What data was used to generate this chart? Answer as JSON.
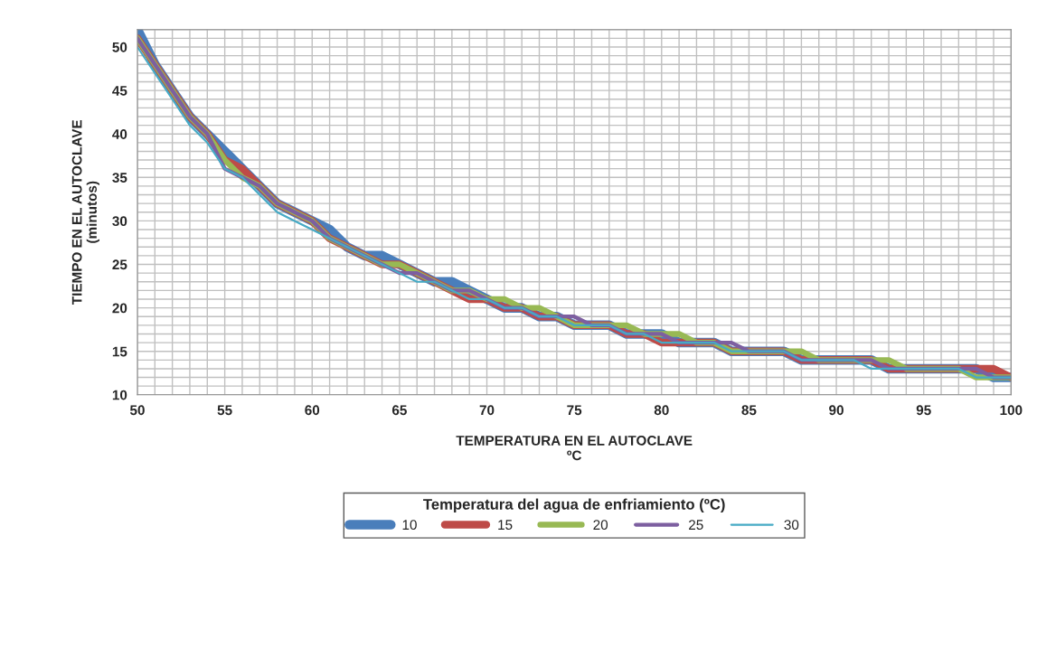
{
  "chart_data": {
    "type": "line",
    "xlabel": "TEMPERATURA EN EL AUTOCLAVE\nºC",
    "ylabel": "TIEMPO EN EL AUTOCLAVE\n(minutos)",
    "legend_title": "Temperatura del agua de enfriamiento (ºC)",
    "legend": "bottom",
    "grid": true,
    "marker": "none",
    "line_style": "solid",
    "x": [
      50,
      51,
      52,
      53,
      54,
      55,
      56,
      57,
      58,
      59,
      60,
      61,
      62,
      63,
      64,
      65,
      66,
      67,
      68,
      69,
      70,
      71,
      72,
      73,
      74,
      75,
      76,
      77,
      78,
      79,
      80,
      81,
      82,
      83,
      84,
      85,
      86,
      87,
      88,
      89,
      90,
      91,
      92,
      93,
      94,
      95,
      96,
      97,
      98,
      99,
      100
    ],
    "series": [
      {
        "name": "10",
        "color": "#4a7ebb",
        "values": [
          52,
          48,
          45,
          42,
          40,
          38,
          36,
          34,
          32,
          31,
          30,
          29,
          27,
          26,
          26,
          25,
          24,
          23,
          23,
          22,
          21,
          20,
          20,
          19,
          19,
          18,
          18,
          18,
          17,
          17,
          17,
          16,
          16,
          16,
          15,
          15,
          15,
          15,
          14,
          14,
          14,
          14,
          14,
          13,
          13,
          13,
          13,
          13,
          13,
          12,
          12
        ]
      },
      {
        "name": "15",
        "color": "#be4b48",
        "values": [
          51,
          48,
          45,
          42,
          40,
          37,
          36,
          34,
          32,
          31,
          30,
          28,
          27,
          26,
          25,
          25,
          24,
          23,
          22,
          21,
          21,
          20,
          20,
          19,
          19,
          18,
          18,
          18,
          17,
          17,
          16,
          16,
          16,
          16,
          15,
          15,
          15,
          15,
          14,
          14,
          14,
          14,
          14,
          13,
          13,
          13,
          13,
          13,
          13,
          13,
          12
        ]
      },
      {
        "name": "20",
        "color": "#98b954",
        "values": [
          51,
          48,
          45,
          42,
          40,
          37,
          35,
          34,
          32,
          31,
          30,
          28,
          27,
          26,
          25,
          25,
          24,
          23,
          22,
          22,
          21,
          21,
          20,
          20,
          19,
          18,
          18,
          18,
          18,
          17,
          17,
          17,
          16,
          16,
          15,
          15,
          15,
          15,
          15,
          14,
          14,
          14,
          14,
          14,
          13,
          13,
          13,
          13,
          12,
          12,
          12
        ]
      },
      {
        "name": "25",
        "color": "#7d5fa0",
        "values": [
          51,
          48,
          45,
          42,
          40,
          36,
          35,
          34,
          32,
          31,
          30,
          28,
          27,
          26,
          25,
          24,
          24,
          23,
          22,
          22,
          21,
          20,
          20,
          19,
          19,
          19,
          18,
          18,
          17,
          17,
          17,
          16,
          16,
          16,
          16,
          15,
          15,
          15,
          14,
          14,
          14,
          14,
          14,
          13,
          13,
          13,
          13,
          13,
          13,
          12,
          12
        ]
      },
      {
        "name": "30",
        "color": "#46aac5",
        "values": [
          50,
          47,
          44,
          41,
          39,
          36,
          35,
          33,
          31,
          30,
          29,
          28,
          27,
          26,
          25,
          24,
          23,
          23,
          22,
          21,
          21,
          20,
          20,
          19,
          19,
          18,
          18,
          18,
          17,
          17,
          16,
          16,
          16,
          16,
          15,
          15,
          15,
          15,
          14,
          14,
          14,
          14,
          13,
          13,
          13,
          13,
          13,
          13,
          12,
          12,
          12
        ]
      }
    ],
    "xlim": [
      50,
      100
    ],
    "ylim": [
      10,
      52
    ],
    "xticks": [
      50,
      {
        "value": 51,
        "label": null
      },
      {
        "value": 52,
        "label": null
      },
      {
        "value": 53,
        "label": null
      },
      {
        "value": 54,
        "label": null
      },
      55,
      {
        "value": 56,
        "label": null
      },
      {
        "value": 57,
        "label": null
      },
      {
        "value": 58,
        "label": null
      },
      {
        "value": 59,
        "label": null
      },
      60,
      {
        "value": 61,
        "label": null
      },
      {
        "value": 62,
        "label": null
      },
      {
        "value": 63,
        "label": null
      },
      {
        "value": 64,
        "label": null
      },
      65,
      {
        "value": 66,
        "label": null
      },
      {
        "value": 67,
        "label": null
      },
      {
        "value": 68,
        "label": null
      },
      {
        "value": 69,
        "label": null
      },
      70,
      {
        "value": 71,
        "label": null
      },
      {
        "value": 72,
        "label": null
      },
      {
        "value": 73,
        "label": null
      },
      {
        "value": 74,
        "label": null
      },
      75,
      {
        "value": 76,
        "label": null
      },
      {
        "value": 77,
        "label": null
      },
      {
        "value": 78,
        "label": null
      },
      {
        "value": 79,
        "label": null
      },
      80,
      {
        "value": 81,
        "label": null
      },
      {
        "value": 82,
        "label": null
      },
      {
        "value": 83,
        "label": null
      },
      {
        "value": 84,
        "label": null
      },
      85,
      {
        "value": 86,
        "label": null
      },
      {
        "value": 87,
        "label": null
      },
      {
        "value": 88,
        "label": null
      },
      {
        "value": 89,
        "label": null
      },
      90,
      {
        "value": 91,
        "label": null
      },
      {
        "value": 92,
        "label": null
      },
      {
        "value": 93,
        "label": null
      },
      {
        "value": 94,
        "label": null
      },
      95,
      {
        "value": 96,
        "label": null
      },
      {
        "value": 97,
        "label": null
      },
      {
        "value": 98,
        "label": null
      },
      {
        "value": 99,
        "label": null
      },
      100
    ],
    "yticks": [
      10,
      {
        "value": 11,
        "label": null
      },
      {
        "value": 12,
        "label": null
      },
      {
        "value": 13,
        "label": null
      },
      {
        "value": 14,
        "label": null
      },
      15,
      {
        "value": 16,
        "label": null
      },
      {
        "value": 17,
        "label": null
      },
      {
        "value": 18,
        "label": null
      },
      {
        "value": 19,
        "label": null
      },
      20,
      {
        "value": 21,
        "label": null
      },
      {
        "value": 22,
        "label": null
      },
      {
        "value": 23,
        "label": null
      },
      {
        "value": 24,
        "label": null
      },
      25,
      {
        "value": 26,
        "label": null
      },
      {
        "value": 27,
        "label": null
      },
      {
        "value": 28,
        "label": null
      },
      {
        "value": 29,
        "label": null
      },
      30,
      {
        "value": 31,
        "label": null
      },
      {
        "value": 32,
        "label": null
      },
      {
        "value": 33,
        "label": null
      },
      {
        "value": 34,
        "label": null
      },
      35,
      {
        "value": 36,
        "label": null
      },
      {
        "value": 37,
        "label": null
      },
      {
        "value": 38,
        "label": null
      },
      {
        "value": 39,
        "label": null
      },
      40,
      {
        "value": 41,
        "label": null
      },
      {
        "value": 42,
        "label": null
      },
      {
        "value": 43,
        "label": null
      },
      {
        "value": 44,
        "label": null
      },
      45,
      {
        "value": 46,
        "label": null
      },
      {
        "value": 47,
        "label": null
      },
      {
        "value": 48,
        "label": null
      },
      {
        "value": 49,
        "label": null
      },
      50,
      {
        "value": 51,
        "label": null
      },
      {
        "value": 52,
        "label": null
      }
    ]
  }
}
